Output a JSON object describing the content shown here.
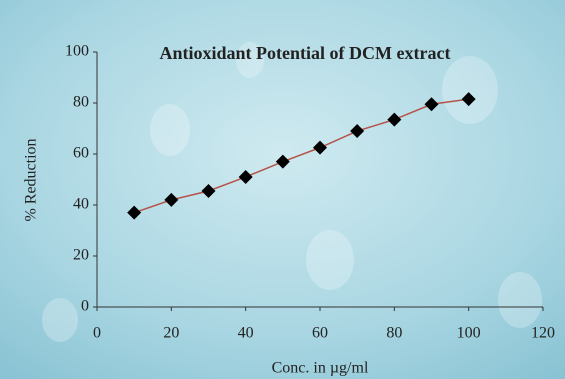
{
  "chart_data": {
    "type": "line",
    "title": "Antioxidant Potential of DCM extract",
    "x_label": "Conc. in µg/ml",
    "y_label": "% Reduction",
    "x": [
      10,
      20,
      30,
      40,
      50,
      60,
      70,
      80,
      90,
      100
    ],
    "values": [
      37,
      42,
      45.5,
      51,
      57,
      62.5,
      69,
      73.5,
      79.5,
      81.5
    ],
    "line_color": "#b5534a",
    "marker_color": "#000000",
    "xlim": [
      0,
      120
    ],
    "xticks": [
      0,
      20,
      40,
      60,
      80,
      100,
      120
    ],
    "ylim": [
      0,
      100
    ],
    "yticks": [
      0,
      20,
      40,
      60,
      80,
      100
    ],
    "grid": false
  }
}
